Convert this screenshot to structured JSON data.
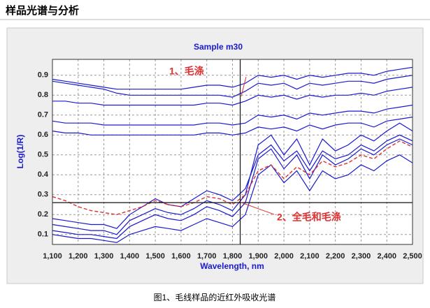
{
  "heading": "样品光谱与分析",
  "caption": "图1、毛线样品的近红外吸收光谱",
  "chart_data": {
    "type": "line",
    "title": "Sample m30",
    "x_label": "Wavelength, nm",
    "y_label": "Log(1/R)",
    "x": [
      1100,
      1150,
      1200,
      1250,
      1300,
      1350,
      1400,
      1450,
      1500,
      1550,
      1600,
      1650,
      1700,
      1750,
      1800,
      1850,
      1900,
      1950,
      2000,
      2050,
      2100,
      2150,
      2200,
      2250,
      2300,
      2350,
      2400,
      2450,
      2500
    ],
    "series": [
      {
        "color": "#1a1ad0",
        "values": [
          0.88,
          0.87,
          0.86,
          0.85,
          0.84,
          0.83,
          0.83,
          0.83,
          0.83,
          0.83,
          0.83,
          0.84,
          0.85,
          0.85,
          0.84,
          0.86,
          0.9,
          0.89,
          0.9,
          0.88,
          0.9,
          0.89,
          0.9,
          0.91,
          0.91,
          0.9,
          0.92,
          0.93,
          0.94
        ]
      },
      {
        "color": "#1a1ad0",
        "values": [
          0.87,
          0.86,
          0.85,
          0.84,
          0.83,
          0.81,
          0.8,
          0.8,
          0.8,
          0.8,
          0.8,
          0.8,
          0.8,
          0.8,
          0.79,
          0.82,
          0.86,
          0.85,
          0.86,
          0.83,
          0.86,
          0.85,
          0.86,
          0.87,
          0.87,
          0.86,
          0.88,
          0.89,
          0.9
        ]
      },
      {
        "color": "#1a1ad0",
        "values": [
          0.77,
          0.77,
          0.76,
          0.76,
          0.75,
          0.75,
          0.75,
          0.75,
          0.75,
          0.75,
          0.75,
          0.75,
          0.76,
          0.76,
          0.75,
          0.77,
          0.8,
          0.79,
          0.8,
          0.78,
          0.8,
          0.79,
          0.8,
          0.8,
          0.81,
          0.8,
          0.82,
          0.83,
          0.84
        ]
      },
      {
        "color": "#1a1ad0",
        "values": [
          0.67,
          0.66,
          0.66,
          0.66,
          0.65,
          0.65,
          0.65,
          0.65,
          0.65,
          0.65,
          0.65,
          0.65,
          0.66,
          0.66,
          0.65,
          0.66,
          0.7,
          0.69,
          0.7,
          0.68,
          0.71,
          0.7,
          0.71,
          0.72,
          0.72,
          0.71,
          0.73,
          0.74,
          0.75
        ]
      },
      {
        "color": "#1a1ad0",
        "values": [
          0.62,
          0.61,
          0.61,
          0.6,
          0.6,
          0.6,
          0.6,
          0.6,
          0.6,
          0.6,
          0.6,
          0.6,
          0.61,
          0.61,
          0.6,
          0.61,
          0.64,
          0.63,
          0.64,
          0.62,
          0.65,
          0.63,
          0.65,
          0.66,
          0.66,
          0.64,
          0.67,
          0.68,
          0.69
        ]
      },
      {
        "color": "#1a1ad0",
        "values": [
          0.15,
          0.14,
          0.13,
          0.12,
          0.12,
          0.1,
          0.17,
          0.2,
          0.23,
          0.21,
          0.2,
          0.23,
          0.27,
          0.25,
          0.22,
          0.3,
          0.55,
          0.6,
          0.5,
          0.58,
          0.45,
          0.58,
          0.52,
          0.55,
          0.6,
          0.57,
          0.62,
          0.66,
          0.62
        ]
      },
      {
        "color": "#1a1ad0",
        "values": [
          0.12,
          0.11,
          0.1,
          0.1,
          0.09,
          0.08,
          0.14,
          0.17,
          0.2,
          0.18,
          0.17,
          0.2,
          0.24,
          0.22,
          0.19,
          0.26,
          0.48,
          0.53,
          0.43,
          0.5,
          0.38,
          0.5,
          0.45,
          0.48,
          0.53,
          0.5,
          0.55,
          0.58,
          0.55
        ]
      },
      {
        "color": "#1a1ad0",
        "values": [
          0.18,
          0.17,
          0.16,
          0.15,
          0.15,
          0.13,
          0.2,
          0.24,
          0.28,
          0.25,
          0.24,
          0.28,
          0.32,
          0.3,
          0.27,
          0.33,
          0.5,
          0.55,
          0.47,
          0.52,
          0.42,
          0.52,
          0.48,
          0.5,
          0.55,
          0.52,
          0.57,
          0.6,
          0.57
        ]
      },
      {
        "color": "#1a1ad0",
        "values": [
          0.1,
          0.09,
          0.08,
          0.08,
          0.07,
          0.06,
          0.1,
          0.12,
          0.14,
          0.13,
          0.12,
          0.15,
          0.18,
          0.16,
          0.14,
          0.2,
          0.4,
          0.45,
          0.36,
          0.42,
          0.32,
          0.42,
          0.38,
          0.4,
          0.45,
          0.42,
          0.47,
          0.5,
          0.46
        ]
      },
      {
        "color": "#e03030",
        "dashed": true,
        "values": [
          0.29,
          0.27,
          0.24,
          0.22,
          0.21,
          0.2,
          0.22,
          0.24,
          0.27,
          0.25,
          0.24,
          0.26,
          0.29,
          0.28,
          0.25,
          0.3,
          0.42,
          0.45,
          0.38,
          0.44,
          0.4,
          0.47,
          0.44,
          0.46,
          0.5,
          0.48,
          0.53,
          0.57,
          0.54
        ]
      }
    ],
    "xlim": [
      1100,
      2500
    ],
    "ylim": [
      0.05,
      0.98
    ],
    "xticks": [
      {
        "value": 1100,
        "label": "1,100"
      },
      {
        "value": 1200,
        "label": "1,200"
      },
      {
        "value": 1300,
        "label": "1,300"
      },
      {
        "value": 1400,
        "label": "1,400"
      },
      {
        "value": 1500,
        "label": "1,500"
      },
      {
        "value": 1600,
        "label": "1,600"
      },
      {
        "value": 1700,
        "label": "1,700"
      },
      {
        "value": 1800,
        "label": "1,800"
      },
      {
        "value": 1900,
        "label": "1,900"
      },
      {
        "value": 2000,
        "label": "2,000"
      },
      {
        "value": 2100,
        "label": "2,100"
      },
      {
        "value": 2200,
        "label": "2,200"
      },
      {
        "value": 2300,
        "label": "2,300"
      },
      {
        "value": 2400,
        "label": "2,400"
      },
      {
        "value": 2500,
        "label": "2,500"
      }
    ],
    "yticks": [
      0.1,
      0.2,
      0.3,
      0.4,
      0.5,
      0.6,
      0.7,
      0.8,
      0.9
    ],
    "grid": true,
    "cursor": {
      "x": 1830,
      "y": 0.26
    },
    "annotations": [
      "1、毛涤",
      "2、全毛和毛涤"
    ]
  }
}
